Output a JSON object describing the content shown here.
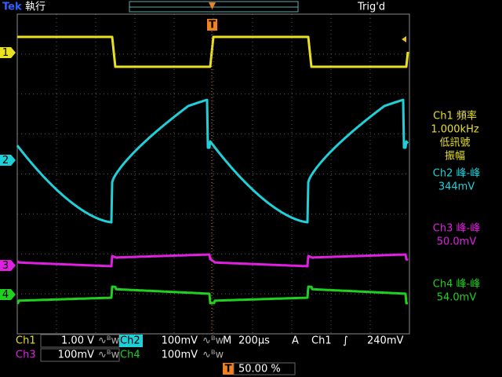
{
  "header": {
    "brand": "Tek",
    "run_state": "執行",
    "trigger_state": "Trig'd",
    "trigger_marker": "T"
  },
  "channel_markers": [
    "1",
    "2",
    "3",
    "4"
  ],
  "measurements": [
    {
      "title": "Ch1 頻率",
      "value": "1.000kHz",
      "note1": "低訊號",
      "note2": "振幅"
    },
    {
      "title": "Ch2 峰-峰",
      "value": "344mV"
    },
    {
      "title": "Ch3 峰-峰",
      "value": "50.0mV"
    },
    {
      "title": "Ch4 峰-峰",
      "value": "54.0mV"
    }
  ],
  "status_bar": {
    "ch1": {
      "label": "Ch1",
      "scale": "1.00 V"
    },
    "ch2": {
      "label": "Ch2",
      "scale": "100mV"
    },
    "ch3": {
      "label": "Ch3",
      "scale": "100mV"
    },
    "ch4": {
      "label": "Ch4",
      "scale": "100mV"
    },
    "timebase_label": "M",
    "timebase": "200µs",
    "trigger_mode": "A",
    "trigger_source": "Ch1",
    "trigger_level": "240mV",
    "trigger_marker": "T",
    "trigger_position": "50.00 %"
  }
}
